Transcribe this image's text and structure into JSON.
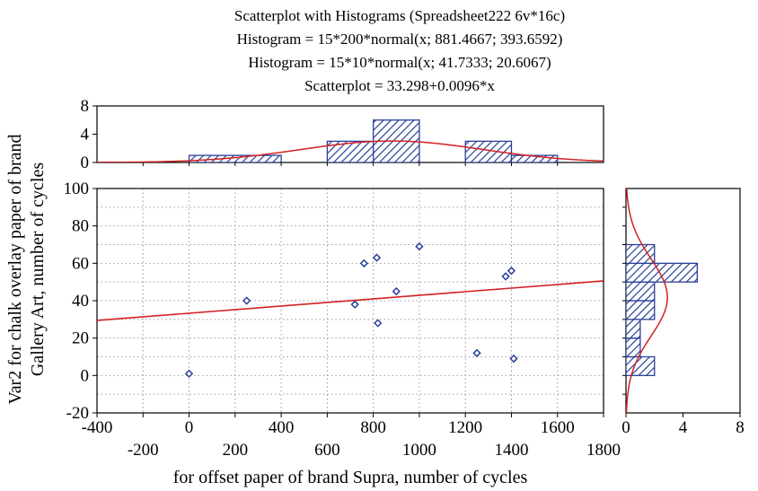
{
  "chart_data": {
    "type": "scatter",
    "title_lines": [
      "Scatterplot with Histograms (Spreadsheet222 6v*16c)",
      "Histogram = 15*200*normal(x; 881.4667; 393.6592)",
      "Histogram = 15*10*normal(x; 41.7333; 20.6067)",
      "Scatterplot = 33.298+0.0096*x"
    ],
    "xlabel": "for offset paper of brand Supra, number of cycles",
    "ylabel_lines": [
      "Var2 for chalk overlay paper of brand",
      "Gallery Art, number of cycles"
    ],
    "xlim": [
      -400,
      1800
    ],
    "ylim": [
      -20,
      100
    ],
    "x_ticks_row1": [
      "-400",
      "0",
      "400",
      "800",
      "1200",
      "1600"
    ],
    "x_ticks_row2": [
      "-200",
      "200",
      "600",
      "1000",
      "1400",
      "1800"
    ],
    "y_ticks": [
      "-20",
      "0",
      "20",
      "40",
      "60",
      "80",
      "100"
    ],
    "points": [
      {
        "x": 0,
        "y": 1
      },
      {
        "x": 250,
        "y": 40
      },
      {
        "x": 720,
        "y": 38
      },
      {
        "x": 760,
        "y": 60
      },
      {
        "x": 815,
        "y": 63
      },
      {
        "x": 820,
        "y": 28
      },
      {
        "x": 900,
        "y": 45
      },
      {
        "x": 1000,
        "y": 69
      },
      {
        "x": 1250,
        "y": 12
      },
      {
        "x": 1375,
        "y": 53
      },
      {
        "x": 1400,
        "y": 56
      },
      {
        "x": 1410,
        "y": 9
      }
    ],
    "fit_line": {
      "intercept": 33.298,
      "slope": 0.0096
    },
    "top_histogram": {
      "bin_edges": [
        0,
        400,
        600,
        800,
        1000,
        1200,
        1400,
        1600
      ],
      "counts": [
        1,
        0,
        3,
        6,
        0,
        3,
        1
      ],
      "ylim": [
        0,
        8
      ],
      "y_ticks": [
        "0",
        "4",
        "8"
      ],
      "normal": {
        "n": 15,
        "binwidth": 200,
        "mean": 881.4667,
        "sd": 393.6592
      }
    },
    "right_histogram": {
      "bin_edges": [
        0,
        10,
        20,
        30,
        40,
        50,
        60,
        70
      ],
      "counts": [
        2,
        1,
        1,
        2,
        2,
        5,
        2
      ],
      "xlim": [
        0,
        8
      ],
      "x_ticks": [
        "0",
        "4",
        "8"
      ],
      "normal": {
        "n": 15,
        "binwidth": 10,
        "mean": 41.7333,
        "sd": 20.6067
      }
    },
    "colors": {
      "points": "#2a3f9a",
      "bar_fill": "#2a3f9a",
      "fit": "#d42020",
      "grid": "#9a9a9a"
    }
  }
}
